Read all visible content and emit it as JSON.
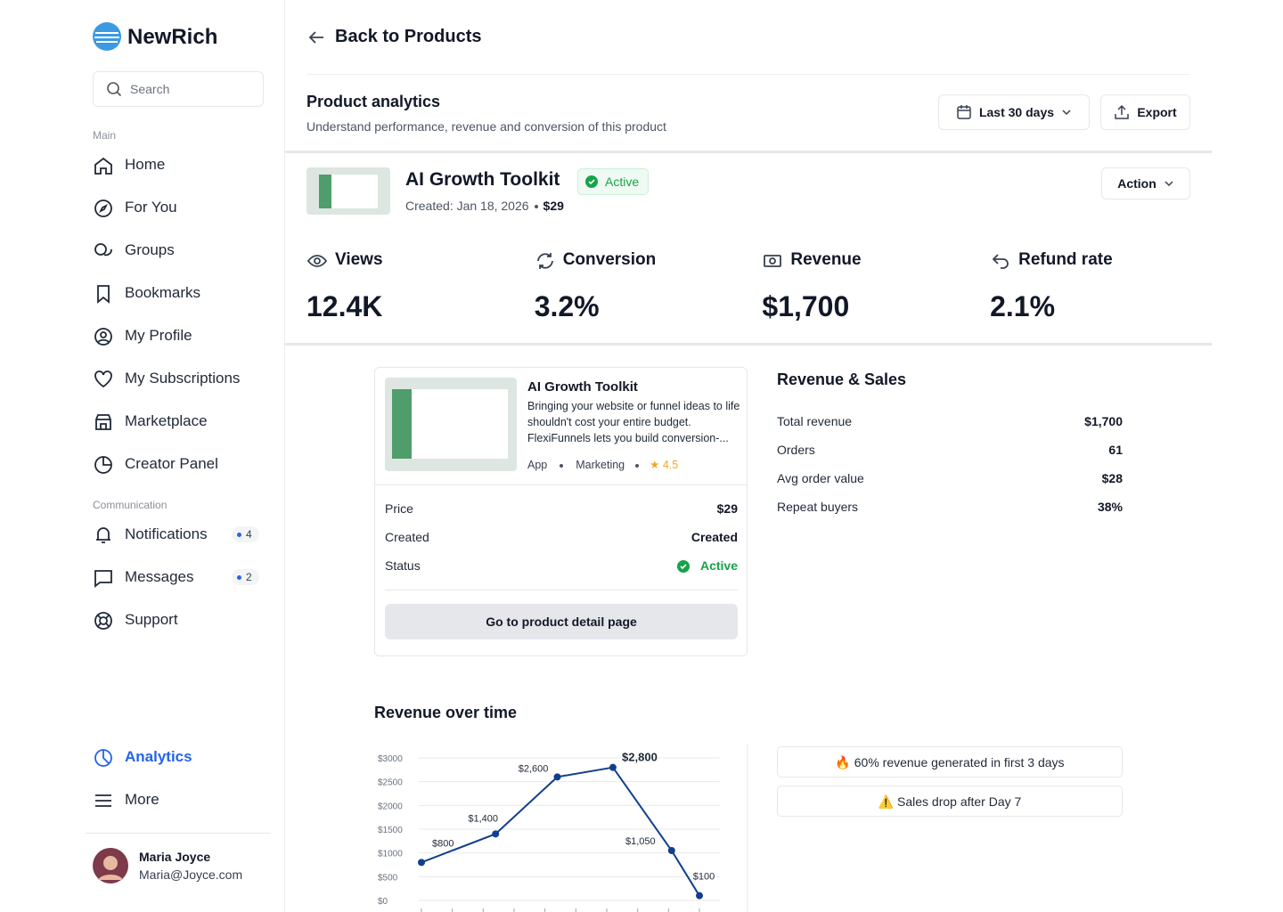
{
  "sidebar": {
    "brand": "NewRich",
    "search_placeholder": "Search",
    "sections": [
      {
        "label": "Main",
        "items": [
          {
            "label": "Home"
          },
          {
            "label": "For You"
          },
          {
            "label": "Groups"
          },
          {
            "label": "Bookmarks"
          },
          {
            "label": "My Profile"
          },
          {
            "label": "My Subscriptions"
          },
          {
            "label": "Marketplace"
          },
          {
            "label": "Creator Panel"
          }
        ]
      },
      {
        "label": "Communication",
        "items": [
          {
            "label": "Notifications",
            "badge": 4
          },
          {
            "label": "Messages",
            "badge": 2
          },
          {
            "label": "Support"
          }
        ]
      }
    ],
    "bottom_items": [
      {
        "label": "Analytics"
      },
      {
        "label": "More"
      }
    ],
    "user": {
      "name": "Maria Joyce",
      "email": "Maria@Joyce.com"
    }
  },
  "header": {
    "back": "Back to Products",
    "title": "Product analytics",
    "subtitle": "Understand performance, revenue and conversion of this product",
    "date_range": "Last 30 days",
    "export": "Export"
  },
  "product": {
    "name": "AI Growth Toolkit",
    "status": "Active",
    "created": "Created: Jan 18, 2026",
    "price": "$29",
    "action": "Action"
  },
  "stats": [
    {
      "label": "Views",
      "value": "12.4K"
    },
    {
      "label": "Conversion",
      "value": "3.2%"
    },
    {
      "label": "Revenue",
      "value": "$1,700"
    },
    {
      "label": "Refund rate",
      "value": "2.1%"
    }
  ],
  "product_card": {
    "title": "AI Growth Toolkit",
    "description": "Bringing your website or funnel ideas to life shouldn't cost your entire budget. FlexiFunnels lets you build conversion-...",
    "tags": [
      "App",
      "Marketing"
    ],
    "rating": "4.5",
    "rows": [
      {
        "label": "Price",
        "value": "$29"
      },
      {
        "label": "Created",
        "value": "Created"
      },
      {
        "label": "Status",
        "value": "Active"
      }
    ],
    "button": "Go to product detail page"
  },
  "revenue_sales": {
    "title": "Revenue & Sales",
    "rows": [
      {
        "label": "Total revenue",
        "value": "$1,700"
      },
      {
        "label": "Orders",
        "value": "61"
      },
      {
        "label": "Avg order value",
        "value": "$28"
      },
      {
        "label": "Repeat buyers",
        "value": "38%"
      }
    ]
  },
  "chart_data": {
    "type": "line",
    "title": "Revenue over time",
    "x": [
      0,
      2.4,
      4.4,
      6.2,
      8.1,
      9
    ],
    "xlim": [
      0,
      9
    ],
    "xticks": [
      0,
      1,
      2,
      3,
      4,
      5,
      6,
      7,
      8,
      9
    ],
    "series": [
      {
        "name": "Revenue",
        "color": "#123f8c",
        "values": [
          800,
          1400,
          2600,
          2800,
          1050,
          100
        ],
        "value_labels": [
          "$800",
          "$1,400",
          "$2,600",
          "$2,800",
          "$1,050",
          "$100"
        ]
      }
    ],
    "ylim": [
      0,
      3000
    ],
    "yticks": [
      {
        "value": 0,
        "label": "$0"
      },
      {
        "value": 500,
        "label": "$500"
      },
      {
        "value": 1000,
        "label": "$1000"
      },
      {
        "value": 1500,
        "label": "$1500"
      },
      {
        "value": 2000,
        "label": "$2000"
      },
      {
        "value": 2500,
        "label": "$2500"
      },
      {
        "value": 3000,
        "label": "$3000"
      }
    ],
    "grid": true
  },
  "insights": [
    "🔥 60% revenue generated in first 3 days",
    "⚠️ Sales drop after Day 7"
  ]
}
